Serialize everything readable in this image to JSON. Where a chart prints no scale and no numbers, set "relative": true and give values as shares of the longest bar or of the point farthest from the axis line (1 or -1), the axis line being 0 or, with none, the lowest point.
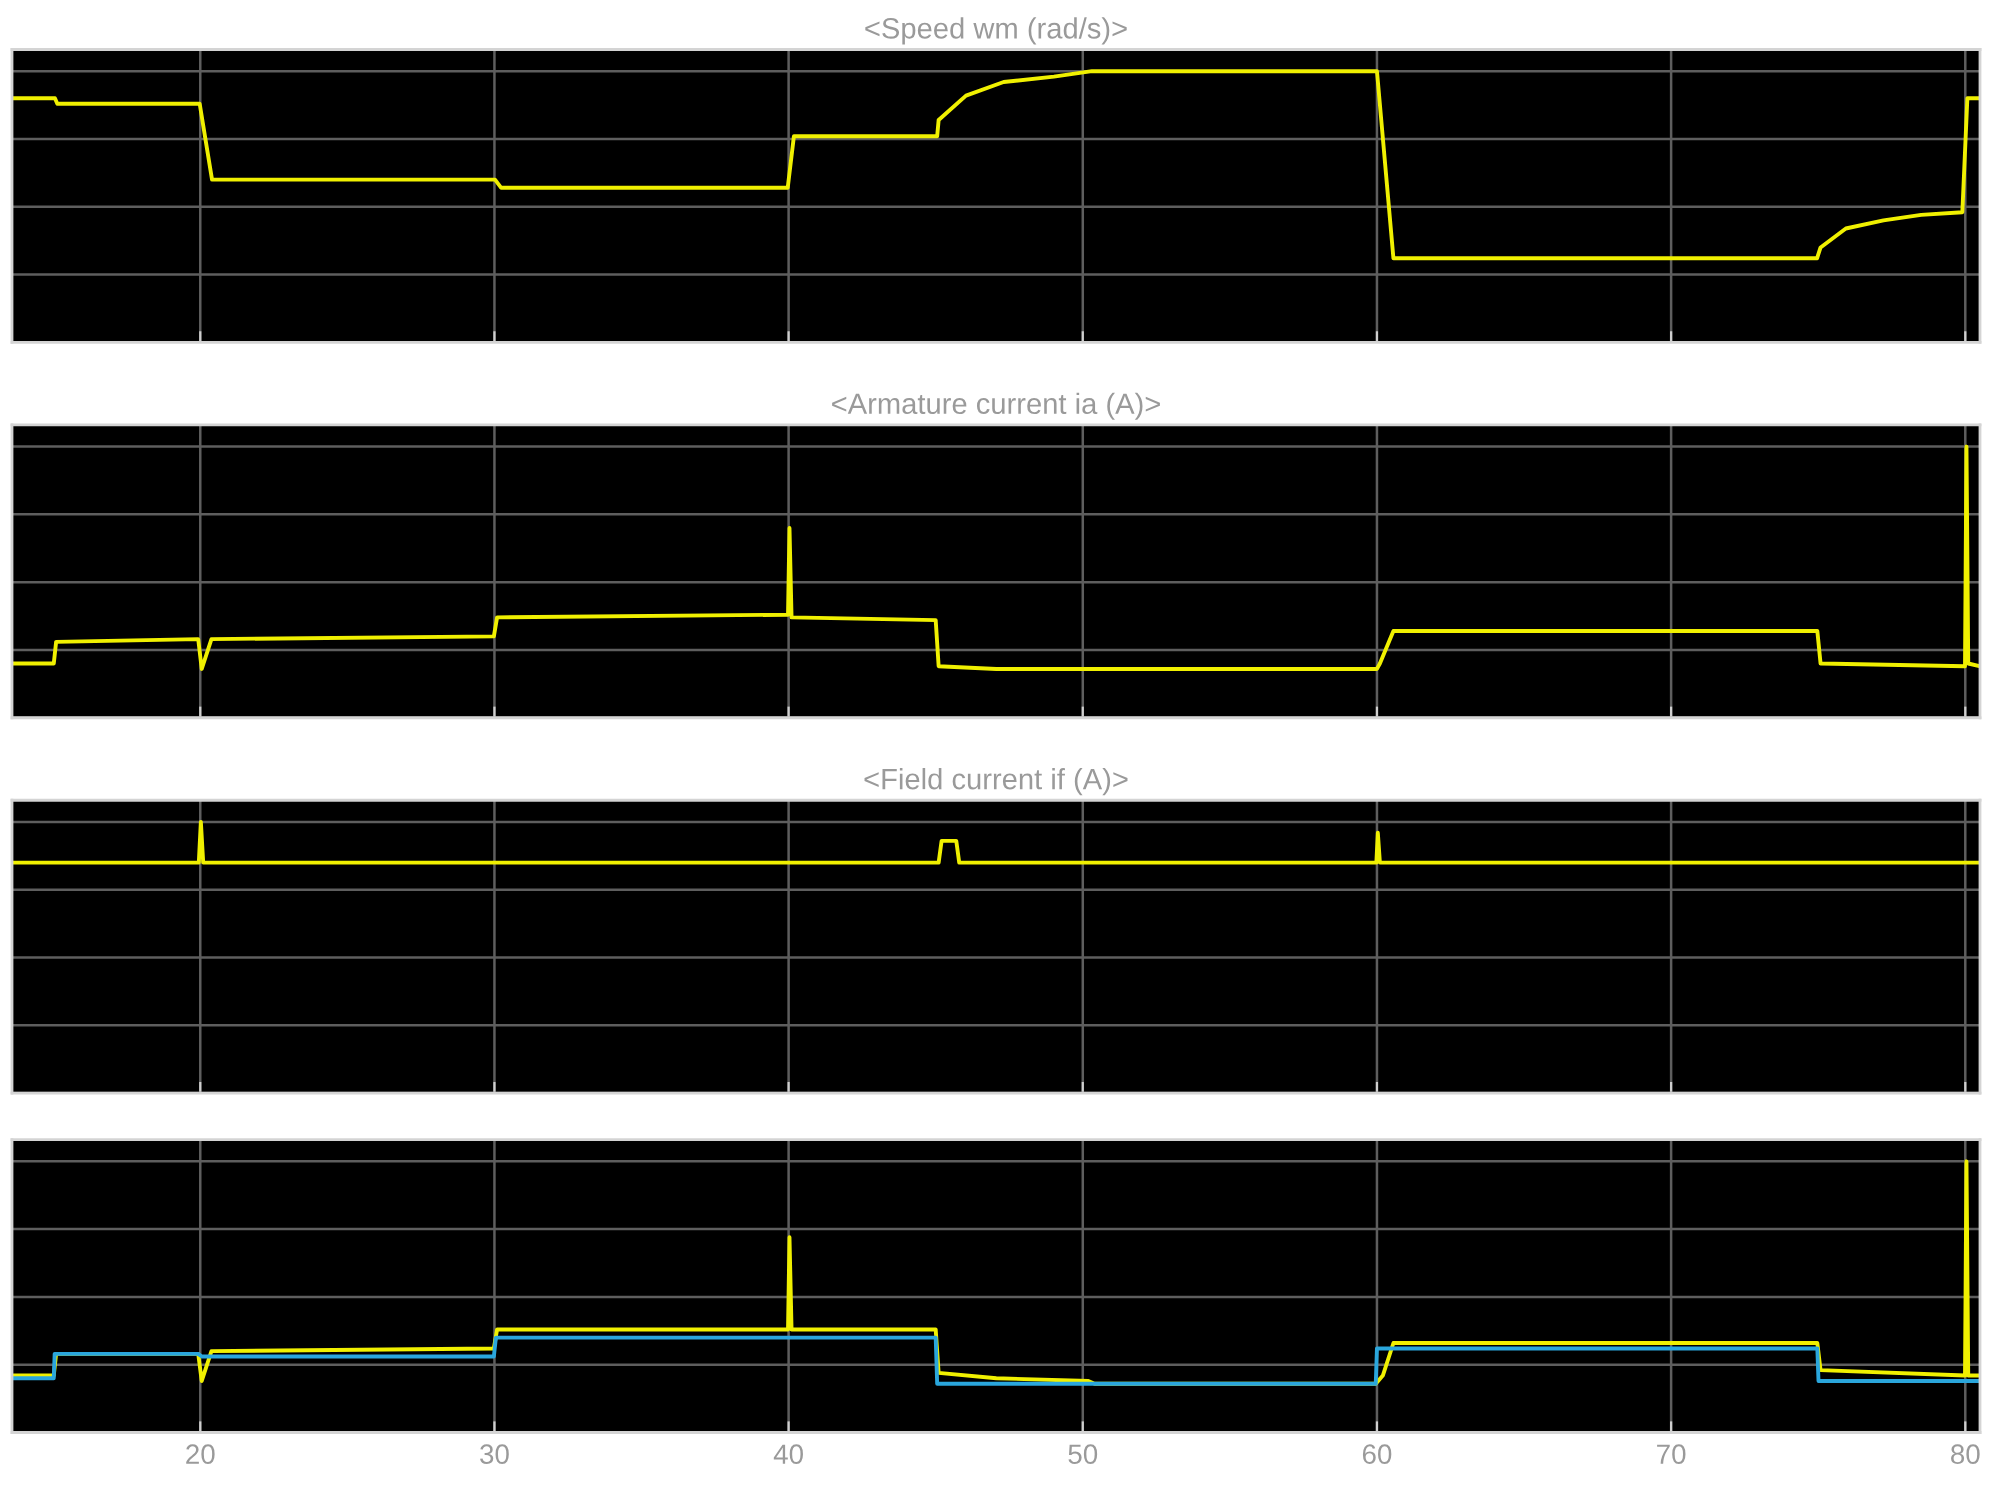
{
  "chart_data": [
    {
      "type": "line",
      "title": "<Speed wm (rad/s)>",
      "relative": true,
      "xlim": [
        13.6,
        80.5
      ],
      "xticks": [
        20,
        30,
        40,
        50,
        60,
        70,
        80
      ],
      "grid": true,
      "tick_labels": false,
      "series": [
        {
          "color": "#f0f000",
          "x": [
            13.6,
            15.06,
            15.14,
            19.98,
            20.4,
            30.02,
            30.23,
            39.97,
            40.18,
            45.05,
            45.1,
            46.03,
            47.31,
            49.02,
            50.31,
            60.0,
            60.56,
            74.96,
            75.08,
            75.94,
            77.22,
            78.5,
            79.9,
            80.07,
            80.5
          ],
          "values": [
            0.9,
            0.9,
            0.88,
            0.88,
            0.6,
            0.6,
            0.57,
            0.57,
            0.76,
            0.76,
            0.82,
            0.91,
            0.96,
            0.98,
            1.0,
            1.0,
            0.31,
            0.31,
            0.35,
            0.42,
            0.45,
            0.47,
            0.48,
            0.9,
            0.9
          ]
        }
      ]
    },
    {
      "type": "line",
      "title": "<Armature current ia (A)>",
      "relative": true,
      "xlim": [
        13.6,
        80.5
      ],
      "xticks": [
        20,
        30,
        40,
        50,
        60,
        70,
        80
      ],
      "grid": true,
      "tick_labels": false,
      "series": [
        {
          "color": "#f0f000",
          "x": [
            13.6,
            15.02,
            15.1,
            19.93,
            20.05,
            20.38,
            29.98,
            30.09,
            39.98,
            40.03,
            40.1,
            45.0,
            45.1,
            47.06,
            49.94,
            60.0,
            60.1,
            60.56,
            74.97,
            75.08,
            79.99,
            80.04,
            80.1,
            80.5
          ],
          "values": [
            0.2,
            0.2,
            0.28,
            0.29,
            0.18,
            0.29,
            0.3,
            0.37,
            0.38,
            0.7,
            0.37,
            0.36,
            0.19,
            0.18,
            0.18,
            0.18,
            0.2,
            0.32,
            0.32,
            0.2,
            0.19,
            1.0,
            0.2,
            0.19
          ]
        }
      ]
    },
    {
      "type": "line",
      "title": "<Field current if (A)>",
      "relative": true,
      "xlim": [
        13.6,
        80.5
      ],
      "xticks": [
        20,
        30,
        40,
        50,
        60,
        70,
        80
      ],
      "grid": true,
      "tick_labels": false,
      "series": [
        {
          "color": "#f0f000",
          "x": [
            13.6,
            19.95,
            20.02,
            20.1,
            45.1,
            45.2,
            45.7,
            45.8,
            59.98,
            60.03,
            60.1,
            80.5
          ],
          "values": [
            0.85,
            0.85,
            1.0,
            0.85,
            0.85,
            0.93,
            0.93,
            0.85,
            0.85,
            0.96,
            0.85,
            0.85
          ]
        }
      ]
    },
    {
      "type": "line",
      "relative": true,
      "xlim": [
        13.6,
        80.5
      ],
      "xticks": [
        20,
        30,
        40,
        50,
        60,
        70,
        80
      ],
      "grid": true,
      "tick_labels": "x",
      "series": [
        {
          "color": "#f0f000",
          "x": [
            13.6,
            15.02,
            15.1,
            19.93,
            20.05,
            20.38,
            29.98,
            30.09,
            39.98,
            40.03,
            40.1,
            45.0,
            45.1,
            47.06,
            50.19,
            50.4,
            59.96,
            60.2,
            60.56,
            74.97,
            75.08,
            79.99,
            80.04,
            80.1,
            80.5
          ],
          "values": [
            0.21,
            0.21,
            0.29,
            0.29,
            0.19,
            0.3,
            0.31,
            0.38,
            0.38,
            0.72,
            0.38,
            0.38,
            0.22,
            0.2,
            0.19,
            0.18,
            0.18,
            0.21,
            0.33,
            0.33,
            0.23,
            0.21,
            1.0,
            0.21,
            0.21
          ]
        },
        {
          "color": "#2aa6dc",
          "x": [
            13.6,
            15.02,
            15.05,
            19.93,
            20.05,
            29.98,
            30.05,
            45.0,
            45.05,
            59.96,
            60.0,
            74.97,
            75.01,
            80.5
          ],
          "values": [
            0.2,
            0.2,
            0.29,
            0.29,
            0.28,
            0.28,
            0.35,
            0.35,
            0.18,
            0.18,
            0.31,
            0.31,
            0.19,
            0.19
          ]
        }
      ]
    }
  ]
}
